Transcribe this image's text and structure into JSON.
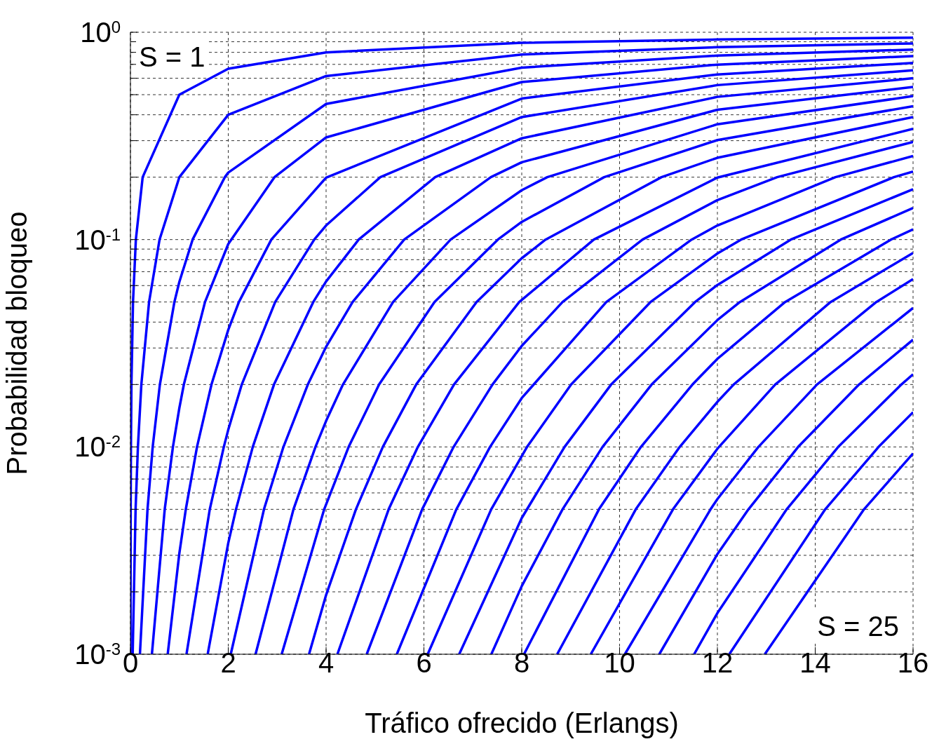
{
  "chart_data": {
    "type": "line",
    "xlabel": "Tráfico ofrecido (Erlangs)",
    "ylabel": "Probabilidad bloqueo",
    "log": "y",
    "grid": true,
    "line_style": "solid",
    "xlim": [
      0,
      16
    ],
    "xticks": [
      0,
      2,
      4,
      6,
      8,
      10,
      12,
      14,
      16
    ],
    "ylim": [
      0.001,
      1
    ],
    "yticks": [
      {
        "value": 0.001,
        "label": "10$^{-3}$"
      },
      {
        "value": 0.002,
        "label": null
      },
      {
        "value": 0.003,
        "label": null
      },
      {
        "value": 0.004,
        "label": null
      },
      {
        "value": 0.005,
        "label": null
      },
      {
        "value": 0.006,
        "label": null
      },
      {
        "value": 0.007,
        "label": null
      },
      {
        "value": 0.008,
        "label": null
      },
      {
        "value": 0.009,
        "label": null
      },
      {
        "value": 0.01,
        "label": "10$^{-2}$"
      },
      {
        "value": 0.02,
        "label": null
      },
      {
        "value": 0.03,
        "label": null
      },
      {
        "value": 0.04,
        "label": null
      },
      {
        "value": 0.05,
        "label": null
      },
      {
        "value": 0.06,
        "label": null
      },
      {
        "value": 0.07,
        "label": null
      },
      {
        "value": 0.08,
        "label": null
      },
      {
        "value": 0.09,
        "label": null
      },
      {
        "value": 0.1,
        "label": "10$^{-1}$"
      },
      {
        "value": 0.2,
        "label": null
      },
      {
        "value": 0.3,
        "label": null
      },
      {
        "value": 0.4,
        "label": null
      },
      {
        "value": 0.5,
        "label": null
      },
      {
        "value": 0.6,
        "label": null
      },
      {
        "value": 0.7,
        "label": null
      },
      {
        "value": 0.8,
        "label": null
      },
      {
        "value": 0.9,
        "label": null
      },
      {
        "value": 1,
        "label": "10$^{0}$"
      }
    ],
    "annotations": [
      "S = 1",
      "S = 25"
    ],
    "series": [
      {
        "color": "#0000ff",
        "x": [
          0.001,
          0.00503,
          0.0101,
          0.0204,
          0.0526,
          0.111,
          0.25,
          1,
          2,
          4,
          8,
          12,
          16
        ],
        "values": [
          0.001,
          0.005,
          0.01,
          0.02,
          0.05,
          0.1,
          0.2,
          0.5,
          0.667,
          0.8,
          0.889,
          0.923,
          0.941
        ]
      },
      {
        "color": "#0000ff",
        "x": [
          0.0458,
          0.1054,
          0.153,
          0.223,
          0.381,
          0.595,
          1,
          2,
          4,
          8,
          12,
          16
        ],
        "values": [
          0.001,
          0.005,
          0.01,
          0.02,
          0.05,
          0.1,
          0.2,
          0.4,
          0.615,
          0.781,
          0.847,
          0.883
        ]
      },
      {
        "color": "#0000ff",
        "x": [
          0.194,
          0.349,
          0.455,
          0.602,
          0.899,
          1,
          1.271,
          1.93,
          2,
          4,
          8,
          12,
          16
        ],
        "values": [
          0.001,
          0.005,
          0.01,
          0.02,
          0.05,
          0.0625,
          0.1,
          0.2,
          0.2105,
          0.451,
          0.675,
          0.772,
          0.825
        ]
      },
      {
        "color": "#0000ff",
        "x": [
          0.439,
          0.701,
          0.869,
          1,
          1.092,
          1.525,
          2,
          2.945,
          4,
          8,
          12,
          16
        ],
        "values": [
          0.001,
          0.005,
          0.01,
          0.0154,
          0.02,
          0.05,
          0.0952,
          0.2,
          0.311,
          0.575,
          0.698,
          0.767
        ]
      },
      {
        "color": "#0000ff",
        "x": [
          0.762,
          1,
          1.132,
          1.361,
          1.657,
          2,
          2.218,
          2.881,
          4,
          8,
          12,
          16
        ],
        "values": [
          0.001,
          0.00307,
          0.005,
          0.01,
          0.02,
          0.0367,
          0.05,
          0.1,
          0.199,
          0.479,
          0.626,
          0.711
        ]
      },
      {
        "color": "#0000ff",
        "x": [
          1.146,
          1.622,
          1.909,
          2,
          2.276,
          2.96,
          3.758,
          4,
          5.109,
          8,
          12,
          16
        ],
        "values": [
          0.001,
          0.005,
          0.01,
          0.0121,
          0.02,
          0.05,
          0.1,
          0.117,
          0.2,
          0.39,
          0.556,
          0.655
        ]
      },
      {
        "color": "#0000ff",
        "x": [
          1.579,
          2,
          2.158,
          2.501,
          2.935,
          3.738,
          4,
          4.666,
          6.23,
          8,
          12,
          16
        ],
        "values": [
          0.001,
          0.00344,
          0.005,
          0.01,
          0.02,
          0.05,
          0.0628,
          0.1,
          0.2,
          0.308,
          0.488,
          0.6
        ]
      },
      {
        "color": "#0000ff",
        "x": [
          2.051,
          2.73,
          3.128,
          3.627,
          4,
          4.543,
          5.597,
          7.369,
          8,
          12,
          16
        ],
        "values": [
          0.001,
          0.005,
          0.01,
          0.02,
          0.0304,
          0.05,
          0.1,
          0.2,
          0.236,
          0.423,
          0.545
        ]
      },
      {
        "color": "#0000ff",
        "x": [
          2.558,
          3.333,
          3.783,
          4,
          4.345,
          5.37,
          6.546,
          8,
          8.522,
          12,
          16
        ],
        "values": [
          0.001,
          0.005,
          0.01,
          0.01334,
          0.02,
          0.05,
          0.1,
          0.173,
          0.2,
          0.36,
          0.492
        ]
      },
      {
        "color": "#0000ff",
        "x": [
          3.092,
          3.961,
          4.461,
          5.084,
          6.216,
          7.511,
          8,
          9.685,
          12,
          16
        ],
        "values": [
          0.001,
          0.005,
          0.01,
          0.02,
          0.05,
          0.1,
          0.1217,
          0.2,
          0.302,
          0.44
        ]
      },
      {
        "color": "#0000ff",
        "x": [
          3.651,
          4,
          4.61,
          5.16,
          5.842,
          7.076,
          8,
          8.487,
          10.857,
          12,
          16
        ],
        "values": [
          0.001,
          0.00193,
          0.005,
          0.01,
          0.02,
          0.05,
          0.0813,
          0.1,
          0.2,
          0.248,
          0.39
        ]
      },
      {
        "color": "#0000ff",
        "x": [
          4.231,
          5.279,
          5.876,
          6.615,
          7.95,
          9.474,
          12,
          16
        ],
        "values": [
          0.001,
          0.005,
          0.01,
          0.02,
          0.05,
          0.1,
          0.199,
          0.342
        ]
      },
      {
        "color": "#0000ff",
        "x": [
          4.831,
          5.964,
          6.607,
          7.402,
          8,
          8.835,
          10.47,
          12,
          13.222,
          16
        ],
        "values": [
          0.001,
          0.005,
          0.01,
          0.02,
          0.0307,
          0.05,
          0.1,
          0.155,
          0.2,
          0.296
        ]
      },
      {
        "color": "#0000ff",
        "x": [
          5.446,
          6.663,
          7.352,
          8,
          9.73,
          11.473,
          12,
          14.413,
          16
        ],
        "values": [
          0.001,
          0.005,
          0.01,
          0.0172,
          0.05,
          0.1,
          0.117,
          0.2,
          0.253
        ]
      },
      {
        "color": "#0000ff",
        "x": [
          6.077,
          7.376,
          8.108,
          9.01,
          10.633,
          12,
          12.484,
          15.608,
          16
        ],
        "values": [
          0.001,
          0.005,
          0.01,
          0.02,
          0.05,
          0.0857,
          0.1,
          0.2,
          0.213
        ]
      },
      {
        "color": "#0000ff",
        "x": [
          6.721,
          8,
          8.875,
          9.828,
          11.544,
          12,
          13.5,
          16
        ],
        "values": [
          0.001,
          0.00454,
          0.01,
          0.02,
          0.05,
          0.0604,
          0.1,
          0.175
        ]
      },
      {
        "color": "#0000ff",
        "x": [
          7.378,
          8,
          8.834,
          9.652,
          10.656,
          12,
          12.461,
          14.522,
          16
        ],
        "values": [
          0.001,
          0.00213,
          0.005,
          0.01,
          0.02,
          0.0409,
          0.05,
          0.1,
          0.142
        ]
      },
      {
        "color": "#0000ff",
        "x": [
          8.046,
          9.578,
          10.437,
          11.491,
          12,
          13.385,
          15.548,
          16
        ],
        "values": [
          0.001,
          0.005,
          0.01,
          0.02,
          0.0266,
          0.05,
          0.1,
          0.112
        ]
      },
      {
        "color": "#0000ff",
        "x": [
          8.724,
          10.331,
          11.23,
          12,
          12.333,
          14.315,
          16
        ],
        "values": [
          0.001,
          0.005,
          0.01,
          0.0165,
          0.02,
          0.05,
          0.0862
        ]
      },
      {
        "color": "#0000ff",
        "x": [
          9.411,
          11.092,
          12,
          13.182,
          15.249,
          16
        ],
        "values": [
          0.001,
          0.005,
          0.0098,
          0.02,
          0.05,
          0.0645
        ]
      },
      {
        "color": "#0000ff",
        "x": [
          10.108,
          11.86,
          12,
          12.838,
          14.036,
          16
        ],
        "values": [
          0.001,
          0.005,
          0.0056,
          0.01,
          0.02,
          0.0468
        ]
      },
      {
        "color": "#0000ff",
        "x": [
          10.812,
          12,
          12.635,
          13.651,
          14.896,
          16
        ],
        "values": [
          0.001,
          0.00304,
          0.005,
          0.01,
          0.02,
          0.0329
        ]
      },
      {
        "color": "#0000ff",
        "x": [
          11.524,
          12,
          13.416,
          14.47,
          15.761,
          16
        ],
        "values": [
          0.001,
          0.00158,
          0.005,
          0.01,
          0.02,
          0.0224
        ]
      },
      {
        "color": "#0000ff",
        "x": [
          12.243,
          14.204,
          15.295,
          16
        ],
        "values": [
          0.001,
          0.005,
          0.01,
          0.0147
        ]
      },
      {
        "color": "#0000ff",
        "x": [
          12.969,
          14.997,
          16
        ],
        "values": [
          0.001,
          0.005,
          0.0093
        ]
      }
    ]
  }
}
